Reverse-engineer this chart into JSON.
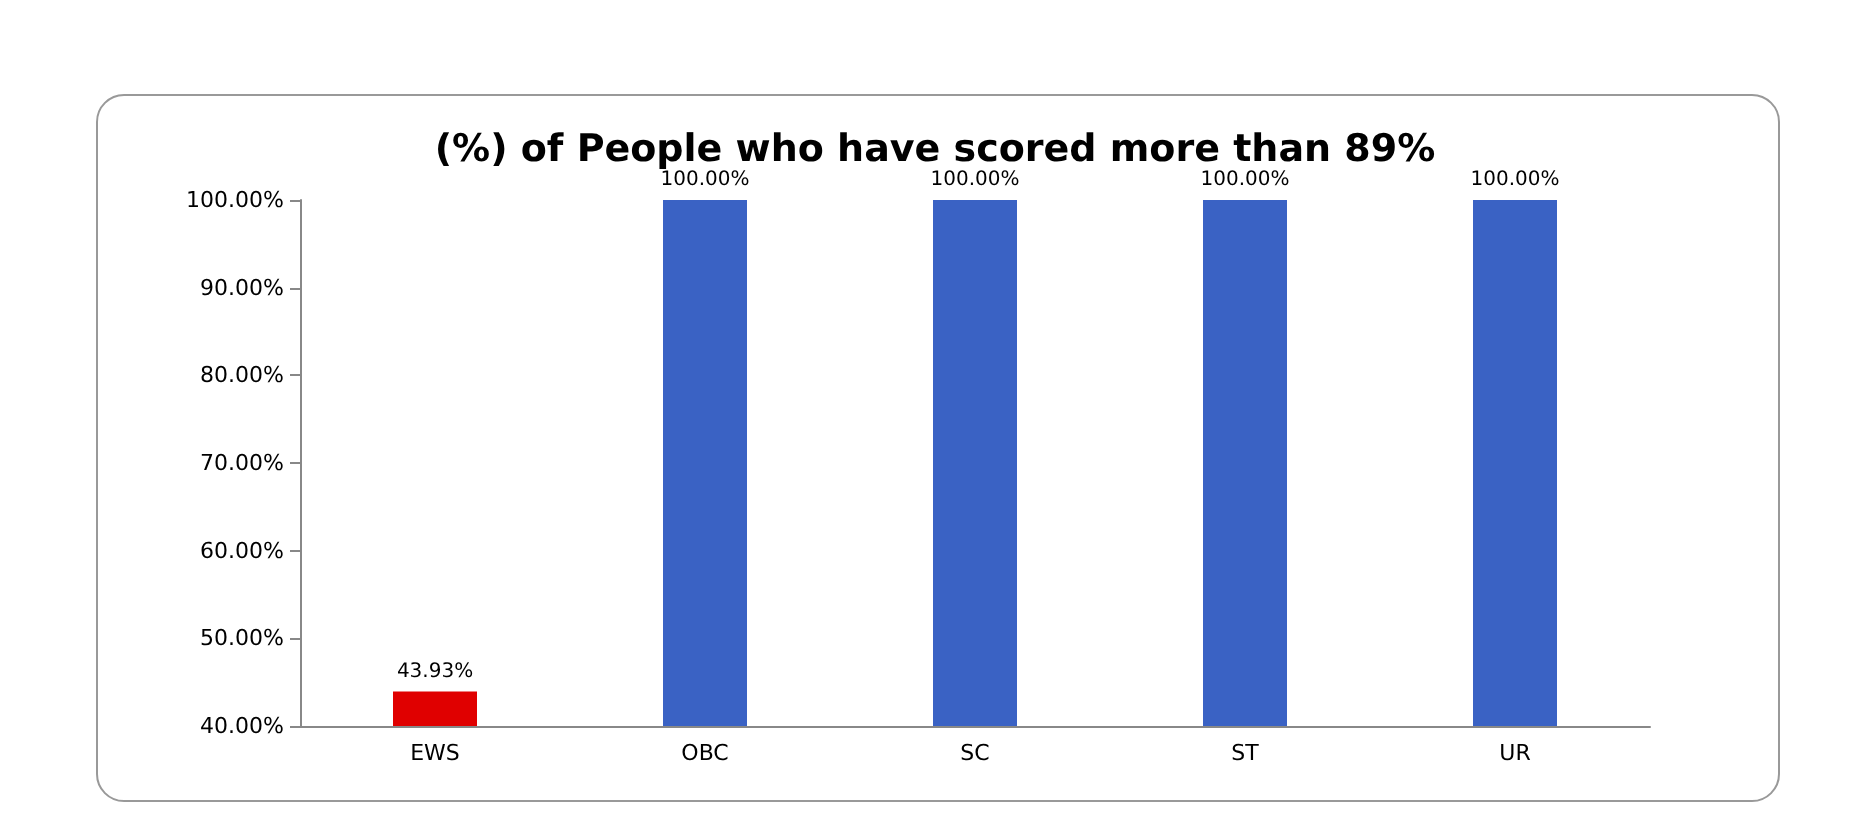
{
  "chart_data": {
    "type": "bar",
    "title": "(%) of People who have scored more than 89%",
    "categories": [
      "EWS",
      "OBC",
      "SC",
      "ST",
      "UR"
    ],
    "values": [
      43.93,
      100,
      100,
      100,
      100
    ],
    "colors": [
      "#e00000",
      "#3a62c4",
      "#3a62c4",
      "#3a62c4",
      "#3a62c4"
    ],
    "value_labels": [
      "43.93%",
      "100.00%",
      "100.00%",
      "100.00%",
      "100.00%"
    ],
    "ylim": [
      40,
      100
    ],
    "yticks": [
      {
        "value": 40,
        "label": "40.00%"
      },
      {
        "value": 50,
        "label": "50.00%"
      },
      {
        "value": 60,
        "label": "60.00%"
      },
      {
        "value": 70,
        "label": "70.00%"
      },
      {
        "value": 80,
        "label": "80.00%"
      },
      {
        "value": 90,
        "label": "90.00%"
      },
      {
        "value": 100,
        "label": "100.00%"
      }
    ],
    "grid": false
  }
}
